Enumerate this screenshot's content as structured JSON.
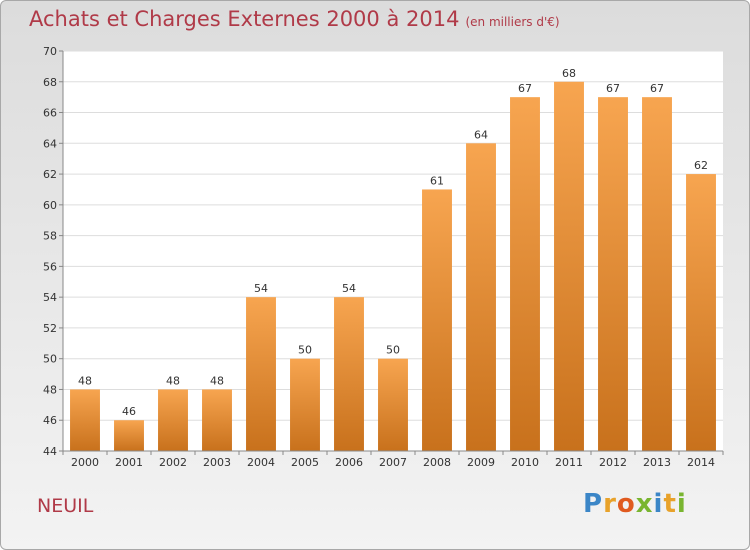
{
  "header": {
    "title": "Achats et Charges Externes 2000 à 2014",
    "subtitle": "(en milliers d'€)"
  },
  "footer": {
    "commune": "NEUIL",
    "logo": "Proxiti"
  },
  "colors": {
    "bar_light": "#f7a550",
    "bar_dark": "#c8711c",
    "title": "#b03a48"
  },
  "chart_data": {
    "type": "bar",
    "title": "Achats et Charges Externes 2000 à 2014",
    "subtitle": "(en milliers d'€)",
    "categories": [
      "2000",
      "2001",
      "2002",
      "2003",
      "2004",
      "2005",
      "2006",
      "2007",
      "2008",
      "2009",
      "2010",
      "2011",
      "2012",
      "2013",
      "2014"
    ],
    "values": [
      48,
      46,
      48,
      48,
      54,
      50,
      54,
      50,
      61,
      64,
      67,
      68,
      67,
      67,
      62
    ],
    "ylim": [
      44,
      70
    ],
    "yticks": [
      44,
      46,
      48,
      50,
      52,
      54,
      56,
      58,
      60,
      62,
      64,
      66,
      68,
      70
    ],
    "grid": true,
    "legend": "none"
  }
}
